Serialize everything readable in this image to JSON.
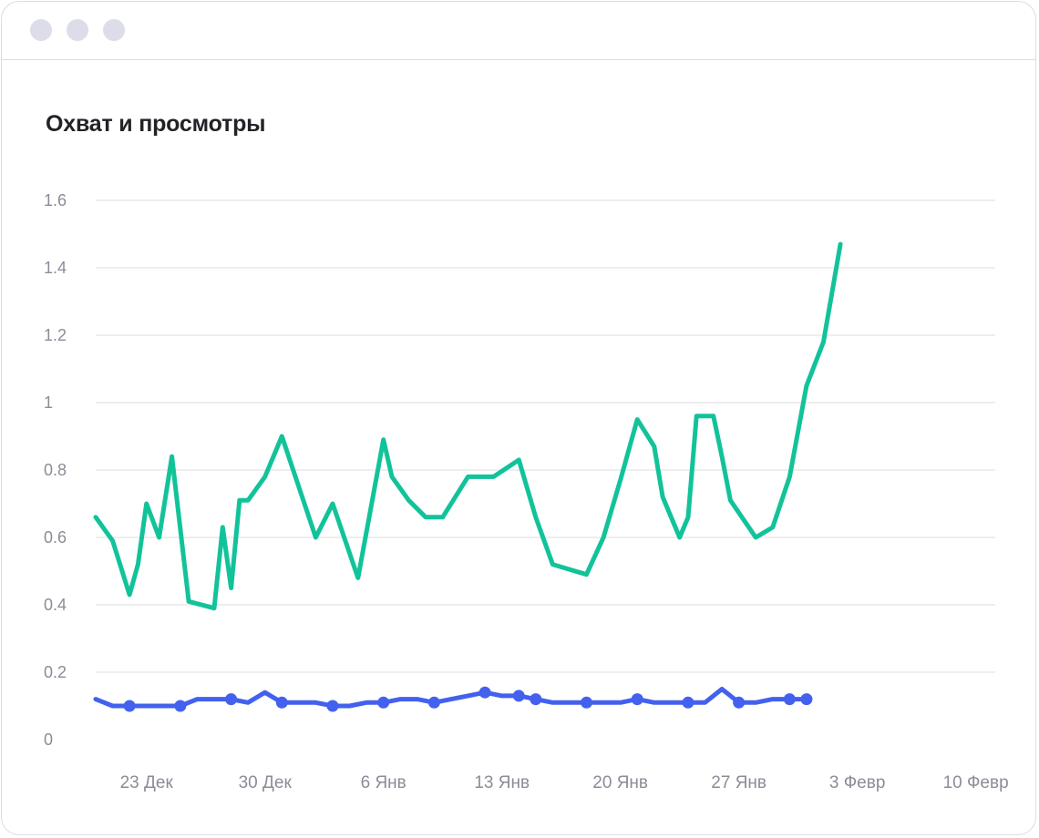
{
  "chart_data": {
    "type": "line",
    "title": "Охват и просмотры",
    "xlabel": "",
    "ylabel": "",
    "ylim": [
      0,
      1.6
    ],
    "yticks": [
      "0",
      "0.2",
      "0.4",
      "0.6",
      "0.8",
      "1",
      "1.2",
      "1.4",
      "1.6"
    ],
    "x_ticks": [
      {
        "date": "2019-12-23",
        "label": "23 Дек"
      },
      {
        "date": "2019-12-30",
        "label": "30 Дек"
      },
      {
        "date": "2020-01-06",
        "label": "6 Янв"
      },
      {
        "date": "2020-01-13",
        "label": "13 Янв"
      },
      {
        "date": "2020-01-20",
        "label": "20 Янв"
      },
      {
        "date": "2020-01-27",
        "label": "27 Янв"
      },
      {
        "date": "2020-02-03",
        "label": "3 Февр"
      },
      {
        "date": "2020-02-10",
        "label": "10 Февр"
      }
    ],
    "grid": true,
    "legend": "none",
    "series": [
      {
        "color": "#12c39a",
        "markers": false,
        "points": [
          [
            "2019-12-20",
            0.66
          ],
          [
            "2019-12-21",
            0.59
          ],
          [
            "2019-12-22",
            0.43
          ],
          [
            "2019-12-22T12",
            0.52
          ],
          [
            "2019-12-23",
            0.7
          ],
          [
            "2019-12-23T18",
            0.6
          ],
          [
            "2019-12-24T12",
            0.84
          ],
          [
            "2019-12-25T12",
            0.41
          ],
          [
            "2019-12-27",
            0.39
          ],
          [
            "2019-12-27T12",
            0.63
          ],
          [
            "2019-12-28",
            0.45
          ],
          [
            "2019-12-28T12",
            0.71
          ],
          [
            "2019-12-29",
            0.71
          ],
          [
            "2019-12-30",
            0.78
          ],
          [
            "2019-12-31",
            0.9
          ],
          [
            "2020-01-02",
            0.6
          ],
          [
            "2020-01-03",
            0.7
          ],
          [
            "2020-01-04T12",
            0.48
          ],
          [
            "2020-01-06",
            0.89
          ],
          [
            "2020-01-06T12",
            0.78
          ],
          [
            "2020-01-07T12",
            0.71
          ],
          [
            "2020-01-08T12",
            0.66
          ],
          [
            "2020-01-09T12",
            0.66
          ],
          [
            "2020-01-11",
            0.78
          ],
          [
            "2020-01-12T12",
            0.78
          ],
          [
            "2020-01-14",
            0.83
          ],
          [
            "2020-01-15",
            0.66
          ],
          [
            "2020-01-16",
            0.52
          ],
          [
            "2020-01-18",
            0.49
          ],
          [
            "2020-01-19",
            0.6
          ],
          [
            "2020-01-20",
            0.77
          ],
          [
            "2020-01-21",
            0.95
          ],
          [
            "2020-01-22",
            0.87
          ],
          [
            "2020-01-22T12",
            0.72
          ],
          [
            "2020-01-23T12",
            0.6
          ],
          [
            "2020-01-24",
            0.66
          ],
          [
            "2020-01-24T12",
            0.96
          ],
          [
            "2020-01-25T12",
            0.96
          ],
          [
            "2020-01-26",
            0.84
          ],
          [
            "2020-01-26T12",
            0.71
          ],
          [
            "2020-01-28",
            0.6
          ],
          [
            "2020-01-29",
            0.63
          ],
          [
            "2020-01-30",
            0.78
          ],
          [
            "2020-01-31",
            1.05
          ],
          [
            "2020-02-01",
            1.18
          ],
          [
            "2020-02-02",
            1.47
          ]
        ]
      },
      {
        "color": "#4361ee",
        "markers": true,
        "points": [
          [
            "2019-12-20",
            0.12
          ],
          [
            "2019-12-21",
            0.1
          ],
          [
            "2019-12-22",
            0.1
          ],
          [
            "2019-12-23",
            0.1
          ],
          [
            "2019-12-24",
            0.1
          ],
          [
            "2019-12-25",
            0.1
          ],
          [
            "2019-12-26",
            0.12
          ],
          [
            "2019-12-27",
            0.12
          ],
          [
            "2019-12-28",
            0.12
          ],
          [
            "2019-12-29",
            0.11
          ],
          [
            "2019-12-30",
            0.14
          ],
          [
            "2019-12-31",
            0.11
          ],
          [
            "2020-01-01",
            0.11
          ],
          [
            "2020-01-02",
            0.11
          ],
          [
            "2020-01-03",
            0.1
          ],
          [
            "2020-01-04",
            0.1
          ],
          [
            "2020-01-05",
            0.11
          ],
          [
            "2020-01-06",
            0.11
          ],
          [
            "2020-01-07",
            0.12
          ],
          [
            "2020-01-08",
            0.12
          ],
          [
            "2020-01-09",
            0.11
          ],
          [
            "2020-01-10",
            0.12
          ],
          [
            "2020-01-11",
            0.13
          ],
          [
            "2020-01-12",
            0.14
          ],
          [
            "2020-01-13",
            0.13
          ],
          [
            "2020-01-14",
            0.13
          ],
          [
            "2020-01-15",
            0.12
          ],
          [
            "2020-01-16",
            0.11
          ],
          [
            "2020-01-17",
            0.11
          ],
          [
            "2020-01-18",
            0.11
          ],
          [
            "2020-01-19",
            0.11
          ],
          [
            "2020-01-20",
            0.11
          ],
          [
            "2020-01-21",
            0.12
          ],
          [
            "2020-01-22",
            0.11
          ],
          [
            "2020-01-23",
            0.11
          ],
          [
            "2020-01-24",
            0.11
          ],
          [
            "2020-01-25",
            0.11
          ],
          [
            "2020-01-26",
            0.15
          ],
          [
            "2020-01-27",
            0.11
          ],
          [
            "2020-01-28",
            0.11
          ],
          [
            "2020-01-29",
            0.12
          ],
          [
            "2020-01-30",
            0.12
          ],
          [
            "2020-01-31",
            0.12
          ]
        ]
      }
    ]
  }
}
